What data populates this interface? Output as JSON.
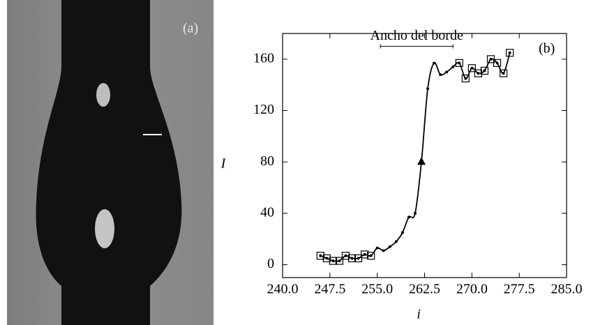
{
  "panel_labels": [
    "(a)",
    "(b)"
  ],
  "chart_data": {
    "type": "line",
    "x_label": "i",
    "y_label": "I",
    "x": [
      246,
      247,
      248,
      249,
      250,
      251,
      252,
      253,
      254,
      255,
      256,
      257,
      258,
      259,
      260,
      261,
      262,
      263,
      264,
      265,
      266,
      267,
      268,
      269,
      270,
      271,
      272,
      273,
      274,
      275,
      276
    ],
    "series": [
      {
        "color": "#000000",
        "values": [
          7,
          5,
          3,
          3,
          7,
          5,
          5,
          8,
          7,
          13,
          11,
          14,
          18,
          25,
          37,
          40,
          80,
          137,
          157,
          148,
          150,
          154,
          157,
          145,
          153,
          149,
          151,
          160,
          157,
          149,
          165
        ],
        "markers": [
          "square",
          "square",
          "square",
          "square",
          "square",
          "square",
          "square",
          "square",
          "square",
          "dot",
          "dot",
          "dot",
          "dot",
          "dot",
          "dot",
          "dot",
          "triangle",
          "dot",
          "dot",
          "dot",
          "dot",
          "dot",
          "square",
          "square",
          "square",
          "square",
          "square",
          "square",
          "square",
          "square",
          "square"
        ]
      }
    ],
    "annotation": {
      "text": "Ancho del borde",
      "x": [
        255.5,
        267
      ],
      "y": 170
    },
    "xlim": [
      240,
      285
    ],
    "xticks": [
      {
        "value": 240,
        "label": "240.0"
      },
      {
        "value": 247.5,
        "label": "247.5"
      },
      {
        "value": 255,
        "label": "255.0"
      },
      {
        "value": 262.5,
        "label": "262.5"
      },
      {
        "value": 270,
        "label": "270.0"
      },
      {
        "value": 277.5,
        "label": "277.5"
      },
      {
        "value": 285,
        "label": "285.0"
      }
    ],
    "ylim": [
      -10,
      180
    ],
    "yticks": [
      0,
      40,
      80,
      120,
      160
    ]
  }
}
